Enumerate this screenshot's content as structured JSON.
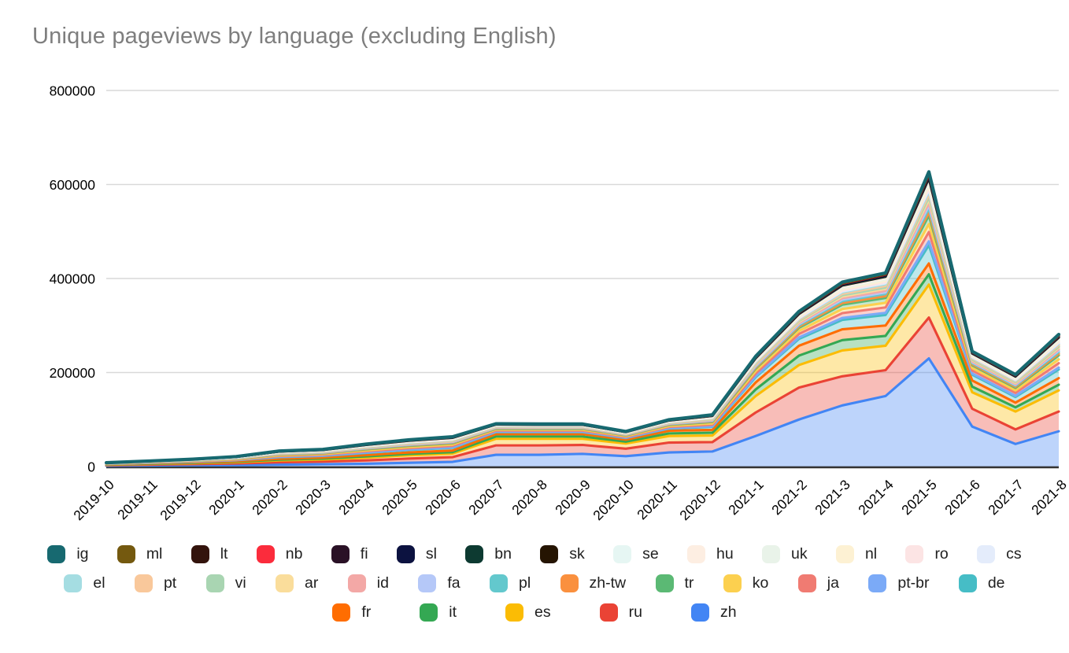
{
  "chart_data": {
    "type": "area",
    "stacked": true,
    "title": "Unique pageviews by language (excluding English)",
    "xlabel": "",
    "ylabel": "",
    "ylim": [
      0,
      800000
    ],
    "y_ticks": [
      0,
      200000,
      400000,
      600000,
      800000
    ],
    "grid": true,
    "legend_position": "bottom",
    "title_color": "#7e7e7e",
    "categories": [
      "2019-10",
      "2019-11",
      "2019-12",
      "2020-1",
      "2020-2",
      "2020-3",
      "2020-4",
      "2020-5",
      "2020-6",
      "2020-7",
      "2020-8",
      "2020-9",
      "2020-10",
      "2020-11",
      "2020-12",
      "2021-1",
      "2021-2",
      "2021-3",
      "2021-4",
      "2021-5",
      "2021-6",
      "2021-7",
      "2021-8"
    ],
    "series": [
      {
        "name": "zh",
        "color": "#4285f4",
        "values": [
          1500,
          2000,
          2500,
          3000,
          4000,
          5000,
          6000,
          8000,
          10000,
          25000,
          25000,
          27000,
          22000,
          30000,
          32000,
          65000,
          100000,
          130000,
          150000,
          230000,
          85000,
          48000,
          75000
        ]
      },
      {
        "name": "ru",
        "color": "#ea4335",
        "values": [
          1200,
          2000,
          2500,
          3500,
          5000,
          5500,
          7000,
          9000,
          10000,
          20000,
          20000,
          19000,
          16000,
          21000,
          20000,
          50000,
          68000,
          62000,
          55000,
          87000,
          38000,
          31000,
          42000
        ]
      },
      {
        "name": "es",
        "color": "#fbbc04",
        "values": [
          1000,
          1500,
          2000,
          2500,
          4000,
          4500,
          6000,
          7000,
          7500,
          14000,
          14000,
          13000,
          11000,
          14000,
          14000,
          35000,
          48000,
          55000,
          52000,
          70000,
          35000,
          38000,
          45000
        ]
      },
      {
        "name": "it",
        "color": "#34a853",
        "values": [
          500,
          700,
          900,
          1200,
          1800,
          2000,
          2600,
          3000,
          3200,
          5000,
          5000,
          5000,
          4000,
          5500,
          6000,
          14000,
          20000,
          22000,
          21000,
          22000,
          12000,
          9000,
          12000
        ]
      },
      {
        "name": "fr",
        "color": "#ff6d01",
        "values": [
          500,
          700,
          900,
          1200,
          1900,
          2100,
          2700,
          3000,
          3300,
          5000,
          5000,
          5000,
          4200,
          5700,
          6000,
          15000,
          21000,
          23000,
          22000,
          23000,
          13000,
          10000,
          14000
        ]
      },
      {
        "name": "de",
        "color": "#46bdc6",
        "values": [
          700,
          1000,
          1400,
          2000,
          3300,
          3500,
          4700,
          5400,
          5900,
          4400,
          4300,
          4300,
          3500,
          4700,
          6400,
          11200,
          14600,
          20000,
          22400,
          39000,
          12400,
          12000,
          18600
        ]
      },
      {
        "name": "pt-br",
        "color": "#7baaf7",
        "values": [
          150,
          200,
          300,
          400,
          700,
          700,
          1000,
          1100,
          1200,
          900,
          900,
          900,
          700,
          1000,
          1300,
          2300,
          3000,
          4100,
          4600,
          8000,
          2500,
          2500,
          3800
        ]
      },
      {
        "name": "ja",
        "color": "#f07b72",
        "values": [
          350,
          500,
          700,
          1000,
          1700,
          1800,
          2400,
          2800,
          3000,
          2300,
          2200,
          2200,
          1800,
          2400,
          3300,
          5700,
          7500,
          10300,
          11500,
          20000,
          6400,
          6200,
          9500
        ]
      },
      {
        "name": "ko",
        "color": "#fcd04f",
        "values": [
          300,
          450,
          600,
          850,
          1400,
          1500,
          2000,
          2300,
          2600,
          1900,
          1900,
          1900,
          1500,
          2000,
          2800,
          4900,
          6400,
          8700,
          9800,
          17000,
          5400,
          5200,
          8100
        ]
      },
      {
        "name": "tr",
        "color": "#5bb974",
        "values": [
          300,
          450,
          650,
          900,
          1500,
          1600,
          2200,
          2500,
          2700,
          2000,
          2000,
          2000,
          1600,
          2200,
          3000,
          5200,
          6700,
          9200,
          10300,
          18000,
          5700,
          5500,
          8600
        ]
      },
      {
        "name": "zh-tw",
        "color": "#fa903e",
        "values": [
          120,
          180,
          250,
          350,
          600,
          630,
          840,
          970,
          1050,
          790,
          770,
          770,
          630,
          840,
          1150,
          2000,
          2600,
          3600,
          4000,
          7000,
          2200,
          2200,
          3300
        ]
      },
      {
        "name": "pl",
        "color": "#63c8cd",
        "values": [
          150,
          200,
          300,
          400,
          700,
          700,
          1000,
          1100,
          1200,
          900,
          900,
          900,
          700,
          1000,
          1300,
          2300,
          3000,
          4100,
          4600,
          8000,
          2500,
          2500,
          3800
        ]
      },
      {
        "name": "fa",
        "color": "#b5c8f8",
        "values": [
          100,
          150,
          210,
          300,
          500,
          540,
          720,
          830,
          900,
          680,
          660,
          660,
          540,
          720,
          980,
          1700,
          2200,
          3100,
          3400,
          6000,
          1900,
          1800,
          2900
        ]
      },
      {
        "name": "id",
        "color": "#f3a8a6",
        "values": [
          100,
          150,
          210,
          300,
          500,
          540,
          720,
          830,
          900,
          680,
          660,
          660,
          540,
          720,
          980,
          1700,
          2200,
          3100,
          3400,
          6000,
          1900,
          1800,
          2900
        ]
      },
      {
        "name": "ar",
        "color": "#fadd9b",
        "values": [
          120,
          180,
          250,
          350,
          600,
          630,
          840,
          970,
          1050,
          790,
          770,
          770,
          630,
          840,
          1150,
          2000,
          2600,
          3600,
          4000,
          7000,
          2200,
          2200,
          3300
        ]
      },
      {
        "name": "vi",
        "color": "#a9d5b2",
        "values": [
          90,
          130,
          180,
          250,
          420,
          450,
          600,
          690,
          750,
          570,
          550,
          550,
          450,
          600,
          820,
          1400,
          1900,
          2600,
          2900,
          5000,
          1600,
          1500,
          2400
        ]
      },
      {
        "name": "pt",
        "color": "#f9c89b",
        "values": [
          100,
          150,
          210,
          300,
          500,
          540,
          720,
          830,
          900,
          680,
          660,
          660,
          540,
          720,
          980,
          1700,
          2200,
          3100,
          3400,
          6000,
          1900,
          1800,
          2900
        ]
      },
      {
        "name": "el",
        "color": "#a5dde2",
        "values": [
          100,
          150,
          210,
          300,
          500,
          540,
          720,
          830,
          900,
          680,
          660,
          660,
          540,
          720,
          980,
          1700,
          2200,
          3100,
          3400,
          6000,
          1900,
          1800,
          2900
        ]
      },
      {
        "name": "cs",
        "color": "#e4ecfb",
        "values": [
          70,
          100,
          140,
          200,
          340,
          360,
          480,
          550,
          600,
          450,
          440,
          440,
          360,
          480,
          660,
          1100,
          1500,
          2100,
          2300,
          4000,
          1300,
          1200,
          1900
        ]
      },
      {
        "name": "ro",
        "color": "#fce4e4",
        "values": [
          70,
          100,
          140,
          200,
          340,
          360,
          480,
          550,
          600,
          450,
          440,
          440,
          360,
          480,
          660,
          1100,
          1500,
          2100,
          2300,
          4000,
          1300,
          1200,
          1900
        ]
      },
      {
        "name": "nl",
        "color": "#fdf1d3",
        "values": [
          90,
          130,
          180,
          250,
          420,
          450,
          600,
          690,
          750,
          570,
          550,
          550,
          450,
          600,
          820,
          1400,
          1900,
          2600,
          2900,
          5000,
          1600,
          1500,
          2400
        ]
      },
      {
        "name": "uk",
        "color": "#e9f3e9",
        "values": [
          90,
          130,
          180,
          250,
          420,
          450,
          600,
          690,
          750,
          570,
          550,
          550,
          450,
          600,
          820,
          1400,
          1900,
          2600,
          2900,
          5000,
          1600,
          1500,
          2400
        ]
      },
      {
        "name": "hu",
        "color": "#fdeee2",
        "values": [
          70,
          100,
          140,
          200,
          340,
          360,
          480,
          550,
          600,
          450,
          440,
          440,
          360,
          480,
          660,
          1100,
          1500,
          2100,
          2300,
          4000,
          1300,
          1200,
          1900
        ]
      },
      {
        "name": "se",
        "color": "#e6f6f3",
        "values": [
          70,
          100,
          140,
          200,
          340,
          360,
          480,
          550,
          600,
          450,
          440,
          440,
          360,
          480,
          660,
          1100,
          1500,
          2100,
          2300,
          4000,
          1300,
          1200,
          1900
        ]
      },
      {
        "name": "sk",
        "color": "#251402",
        "values": [
          35,
          50,
          70,
          100,
          170,
          180,
          240,
          280,
          300,
          230,
          220,
          220,
          180,
          240,
          330,
          570,
          750,
          1000,
          1150,
          2000,
          640,
          620,
          950
        ]
      },
      {
        "name": "bn",
        "color": "#0d3a31",
        "values": [
          35,
          50,
          70,
          100,
          170,
          180,
          240,
          280,
          300,
          230,
          220,
          220,
          180,
          240,
          330,
          570,
          750,
          1000,
          1150,
          2000,
          640,
          620,
          950
        ]
      },
      {
        "name": "sl",
        "color": "#0c1240",
        "values": [
          35,
          50,
          70,
          100,
          170,
          180,
          240,
          280,
          300,
          230,
          220,
          220,
          180,
          240,
          330,
          570,
          750,
          1000,
          1150,
          2000,
          640,
          620,
          950
        ]
      },
      {
        "name": "fi",
        "color": "#2a1126",
        "values": [
          35,
          50,
          70,
          100,
          170,
          180,
          240,
          280,
          300,
          230,
          220,
          220,
          180,
          240,
          330,
          570,
          750,
          1000,
          1150,
          2000,
          640,
          620,
          950
        ]
      },
      {
        "name": "nb",
        "color": "#fb2c3c",
        "values": [
          35,
          50,
          70,
          100,
          170,
          180,
          240,
          280,
          300,
          230,
          220,
          220,
          180,
          240,
          330,
          570,
          750,
          1000,
          1150,
          2000,
          640,
          620,
          950
        ]
      },
      {
        "name": "lt",
        "color": "#33130c",
        "values": [
          20,
          25,
          35,
          50,
          85,
          90,
          120,
          140,
          150,
          115,
          110,
          110,
          90,
          120,
          165,
          290,
          375,
          500,
          580,
          1000,
          320,
          310,
          480
        ]
      },
      {
        "name": "ml",
        "color": "#74590f",
        "values": [
          20,
          25,
          35,
          50,
          85,
          90,
          120,
          140,
          150,
          115,
          110,
          110,
          90,
          120,
          165,
          290,
          375,
          500,
          580,
          1000,
          320,
          310,
          480
        ]
      },
      {
        "name": "ig",
        "color": "#176970",
        "values": [
          70,
          100,
          140,
          200,
          340,
          360,
          480,
          550,
          600,
          450,
          440,
          440,
          360,
          480,
          660,
          1100,
          1500,
          2100,
          2300,
          4000,
          1300,
          1200,
          1900
        ]
      }
    ],
    "legend_rows": [
      [
        "ig",
        "ml",
        "lt",
        "nb",
        "fi",
        "sl",
        "bn",
        "sk",
        "se",
        "hu",
        "uk",
        "nl",
        "ro",
        "cs"
      ],
      [
        "el",
        "pt",
        "vi",
        "ar",
        "id",
        "fa",
        "pl",
        "zh-tw",
        "tr",
        "ko",
        "ja",
        "pt-br",
        "de"
      ],
      [
        "fr",
        "it",
        "es",
        "ru",
        "zh"
      ]
    ]
  }
}
